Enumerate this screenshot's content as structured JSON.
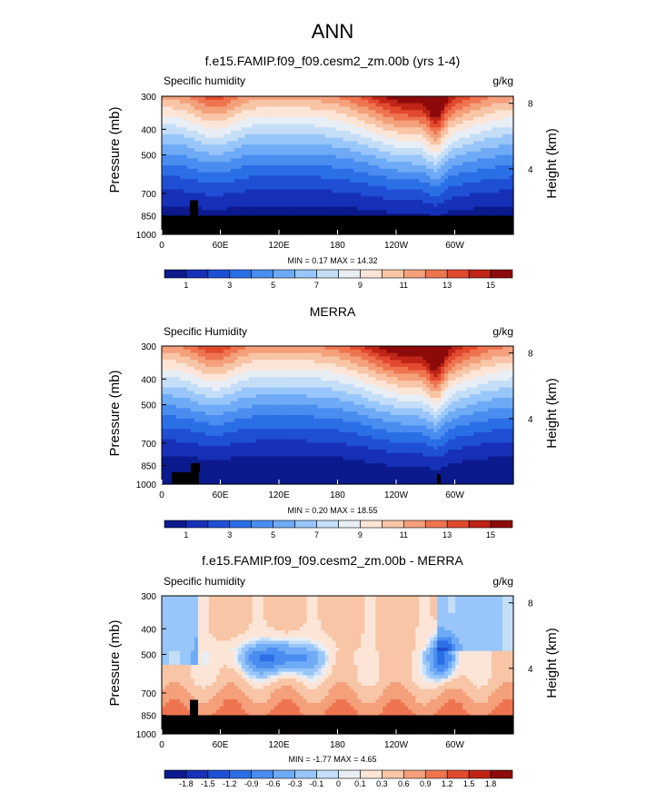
{
  "figure": {
    "title": "ANN"
  },
  "chart_data": [
    {
      "type": "heatmap",
      "title": "f.e15.FAMIP.f09_f09.cesm2_zm.00b (yrs 1-4)",
      "left_label": "Specific humidity",
      "units": "g/kg",
      "ylabel": "Pressure (mb)",
      "right_ylabel": "Height (km)",
      "x_ticks": [
        "0",
        "60E",
        "120E",
        "180",
        "120W",
        "60W"
      ],
      "y_ticks": [
        "300",
        "400",
        "500",
        "700",
        "850",
        "1000"
      ],
      "right_ticks": [
        "8",
        "4"
      ],
      "stats": "MIN =   0.17  MAX =  14.32",
      "colorbar_labels": [
        "1",
        "3",
        "5",
        "7",
        "9",
        "11",
        "13",
        "15"
      ],
      "levels": [
        1,
        2,
        3,
        4,
        5,
        6,
        7,
        8,
        9,
        10,
        11,
        12,
        13,
        14,
        15
      ],
      "ylim": [
        1000,
        300
      ],
      "palette": [
        "#0b1a8c",
        "#1730b8",
        "#1f4fd4",
        "#2b6fe6",
        "#4a8df0",
        "#6eaaf5",
        "#98c6fa",
        "#c4def8",
        "#e8eef5",
        "#fce5d6",
        "#f8c5a6",
        "#f4a07a",
        "#ee7450",
        "#e14a2e",
        "#bf2416",
        "#8c0a0a"
      ],
      "terrain": "#000000"
    },
    {
      "type": "heatmap",
      "title": "MERRA",
      "left_label": "Specific Humidity",
      "units": "g/kg",
      "ylabel": "Pressure (mb)",
      "right_ylabel": "Height (km)",
      "x_ticks": [
        "0",
        "60E",
        "120E",
        "180",
        "120W",
        "60W"
      ],
      "y_ticks": [
        "300",
        "400",
        "500",
        "700",
        "850",
        "1000"
      ],
      "right_ticks": [
        "8",
        "4"
      ],
      "stats": "MIN =   0.20  MAX =  18.55",
      "colorbar_labels": [
        "1",
        "3",
        "5",
        "7",
        "9",
        "11",
        "13",
        "15"
      ],
      "levels": [
        1,
        2,
        3,
        4,
        5,
        6,
        7,
        8,
        9,
        10,
        11,
        12,
        13,
        14,
        15
      ],
      "ylim": [
        1000,
        300
      ]
    },
    {
      "type": "heatmap",
      "title": "f.e15.FAMIP.f09_f09.cesm2_zm.00b - MERRA",
      "left_label": "Specific humidity",
      "units": "g/kg",
      "ylabel": "Pressure (mb)",
      "right_ylabel": "Height (km)",
      "x_ticks": [
        "0",
        "60E",
        "120E",
        "180",
        "120W",
        "60W"
      ],
      "y_ticks": [
        "300",
        "400",
        "500",
        "700",
        "850",
        "1000"
      ],
      "right_ticks": [
        "8",
        "4"
      ],
      "stats": "MIN =  -1.77  MAX =   4.65",
      "colorbar_labels": [
        "-1.8",
        "-1.5",
        "-1.2",
        "-0.9",
        "-0.6",
        "-0.3",
        "-0.1",
        "0",
        "0.1",
        "0.3",
        "0.6",
        "0.9",
        "1.2",
        "1.5",
        "1.8"
      ],
      "levels": [
        -1.8,
        -1.5,
        -1.2,
        -0.9,
        -0.6,
        -0.3,
        -0.1,
        0,
        0.1,
        0.3,
        0.6,
        0.9,
        1.2,
        1.5,
        1.8
      ],
      "ylim": [
        1000,
        300
      ]
    }
  ]
}
